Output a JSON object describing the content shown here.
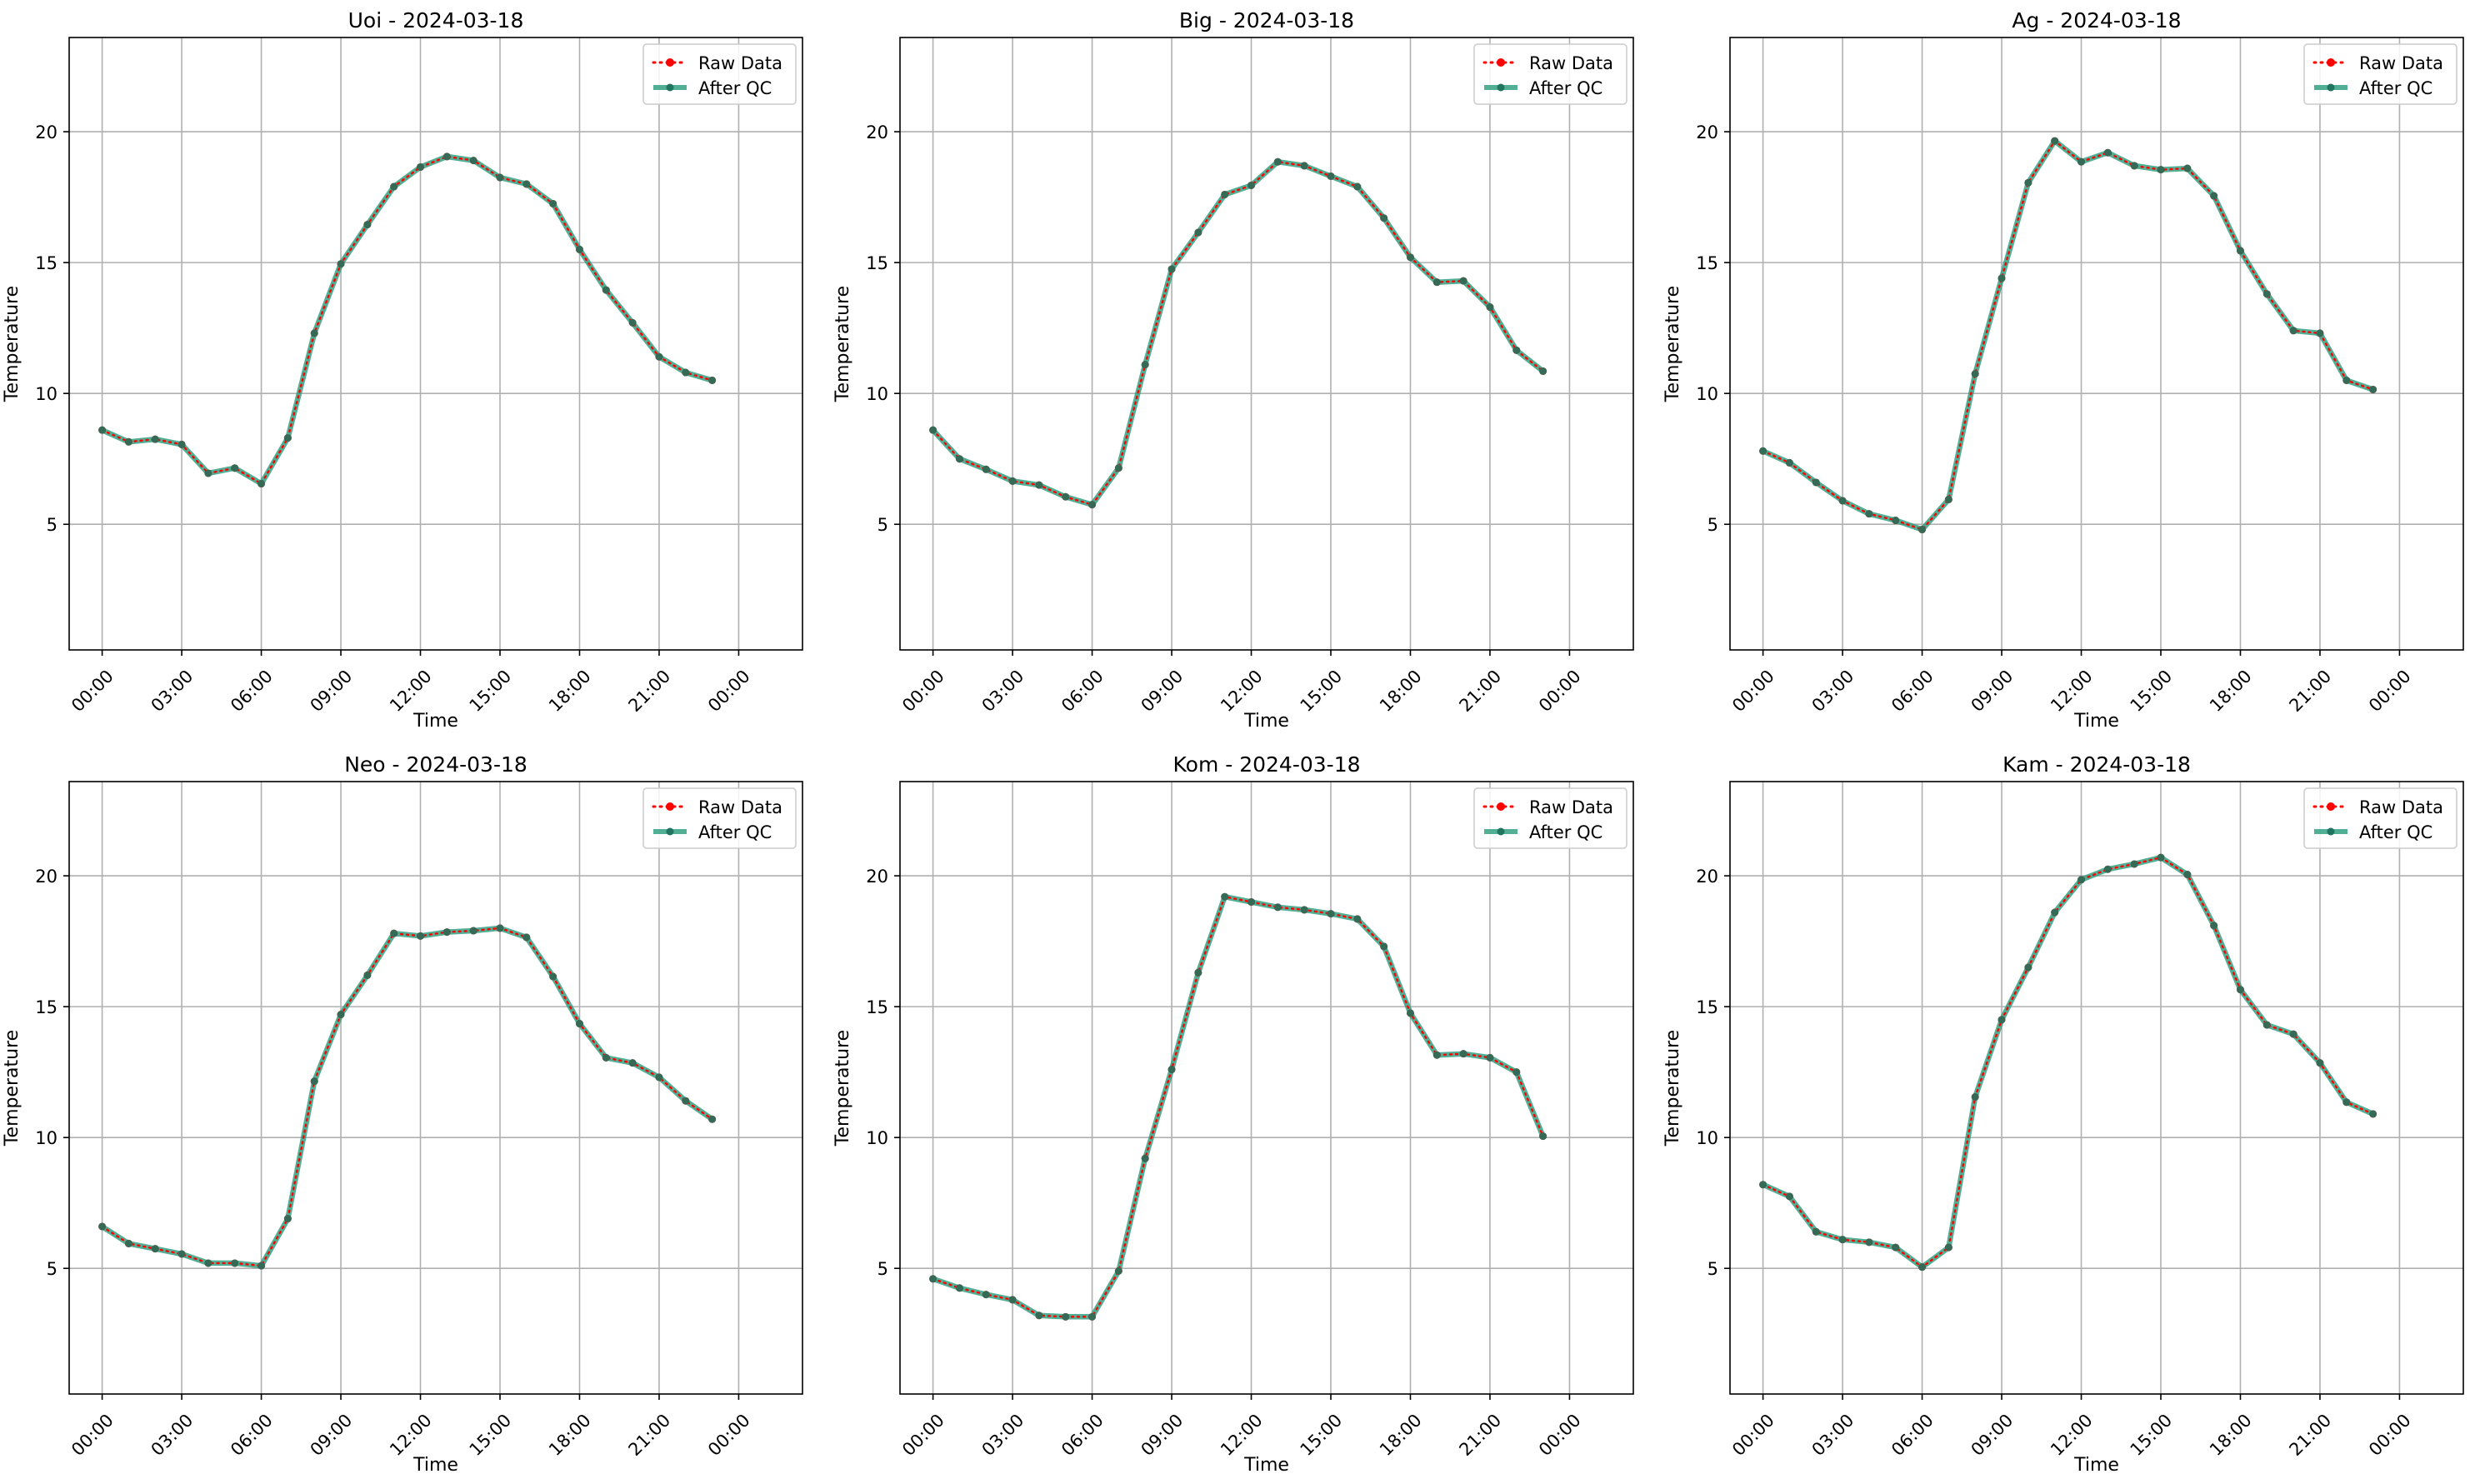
{
  "chart_data": [
    {
      "type": "line",
      "title": "Uoi - 2024-03-18",
      "xlabel": "Time",
      "ylabel": "Temperature",
      "x": [
        "00:00",
        "01:00",
        "02:00",
        "03:00",
        "04:00",
        "05:00",
        "06:00",
        "07:00",
        "08:00",
        "09:00",
        "10:00",
        "11:00",
        "12:00",
        "13:00",
        "14:00",
        "15:00",
        "16:00",
        "17:00",
        "18:00",
        "19:00",
        "20:00",
        "21:00",
        "22:00",
        "23:00"
      ],
      "xticks": [
        "00:00",
        "03:00",
        "06:00",
        "09:00",
        "12:00",
        "15:00",
        "18:00",
        "21:00",
        "00:00"
      ],
      "yticks": [
        "5",
        "10",
        "15",
        "20"
      ],
      "ylim": [
        0.2,
        23.6
      ],
      "grid": true,
      "legend": {
        "position": "top-right",
        "entries": [
          "Raw Data",
          "After QC"
        ]
      },
      "series": [
        {
          "name": "Raw Data",
          "color": "#ff0000",
          "values": [
            8.6,
            8.15,
            8.25,
            8.05,
            6.95,
            7.15,
            6.55,
            8.3,
            12.3,
            14.95,
            16.45,
            17.9,
            18.65,
            19.05,
            18.9,
            18.25,
            18.0,
            17.25,
            15.5,
            13.95,
            12.7,
            11.4,
            10.8,
            10.5
          ]
        },
        {
          "name": "After QC",
          "color": "#2a9d7c",
          "values": [
            8.6,
            8.15,
            8.25,
            8.05,
            6.95,
            7.15,
            6.55,
            8.3,
            12.3,
            14.95,
            16.45,
            17.9,
            18.65,
            19.05,
            18.9,
            18.25,
            18.0,
            17.25,
            15.5,
            13.95,
            12.7,
            11.4,
            10.8,
            10.5
          ]
        }
      ]
    },
    {
      "type": "line",
      "title": "Big - 2024-03-18",
      "xlabel": "Time",
      "ylabel": "Temperature",
      "x": [
        "00:00",
        "01:00",
        "02:00",
        "03:00",
        "04:00",
        "05:00",
        "06:00",
        "07:00",
        "08:00",
        "09:00",
        "10:00",
        "11:00",
        "12:00",
        "13:00",
        "14:00",
        "15:00",
        "16:00",
        "17:00",
        "18:00",
        "19:00",
        "20:00",
        "21:00",
        "22:00",
        "23:00"
      ],
      "xticks": [
        "00:00",
        "03:00",
        "06:00",
        "09:00",
        "12:00",
        "15:00",
        "18:00",
        "21:00",
        "00:00"
      ],
      "yticks": [
        "5",
        "10",
        "15",
        "20"
      ],
      "ylim": [
        0.2,
        23.6
      ],
      "grid": true,
      "legend": {
        "position": "top-right",
        "entries": [
          "Raw Data",
          "After QC"
        ]
      },
      "series": [
        {
          "name": "Raw Data",
          "color": "#ff0000",
          "values": [
            8.6,
            7.5,
            7.1,
            6.65,
            6.5,
            6.05,
            5.75,
            7.15,
            11.1,
            14.75,
            16.15,
            17.6,
            17.95,
            18.85,
            18.7,
            18.3,
            17.9,
            16.7,
            15.2,
            14.25,
            14.3,
            13.3,
            11.65,
            10.85
          ]
        },
        {
          "name": "After QC",
          "color": "#2a9d7c",
          "values": [
            8.6,
            7.5,
            7.1,
            6.65,
            6.5,
            6.05,
            5.75,
            7.15,
            11.1,
            14.75,
            16.15,
            17.6,
            17.95,
            18.85,
            18.7,
            18.3,
            17.9,
            16.7,
            15.2,
            14.25,
            14.3,
            13.3,
            11.65,
            10.85
          ]
        }
      ]
    },
    {
      "type": "line",
      "title": "Ag - 2024-03-18",
      "xlabel": "Time",
      "ylabel": "Temperature",
      "x": [
        "00:00",
        "01:00",
        "02:00",
        "03:00",
        "04:00",
        "05:00",
        "06:00",
        "07:00",
        "08:00",
        "09:00",
        "10:00",
        "11:00",
        "12:00",
        "13:00",
        "14:00",
        "15:00",
        "16:00",
        "17:00",
        "18:00",
        "19:00",
        "20:00",
        "21:00",
        "22:00",
        "23:00"
      ],
      "xticks": [
        "00:00",
        "03:00",
        "06:00",
        "09:00",
        "12:00",
        "15:00",
        "18:00",
        "21:00",
        "00:00"
      ],
      "yticks": [
        "5",
        "10",
        "15",
        "20"
      ],
      "ylim": [
        0.2,
        23.6
      ],
      "grid": true,
      "legend": {
        "position": "top-right",
        "entries": [
          "Raw Data",
          "After QC"
        ]
      },
      "series": [
        {
          "name": "Raw Data",
          "color": "#ff0000",
          "values": [
            7.8,
            7.35,
            6.6,
            5.9,
            5.4,
            5.15,
            4.8,
            5.95,
            10.75,
            14.4,
            18.05,
            19.65,
            18.85,
            19.2,
            18.7,
            18.55,
            18.6,
            17.55,
            15.45,
            13.8,
            12.4,
            12.3,
            10.5,
            10.15
          ]
        },
        {
          "name": "After QC",
          "color": "#2a9d7c",
          "values": [
            7.8,
            7.35,
            6.6,
            5.9,
            5.4,
            5.15,
            4.8,
            5.95,
            10.75,
            14.4,
            18.05,
            19.65,
            18.85,
            19.2,
            18.7,
            18.55,
            18.6,
            17.55,
            15.45,
            13.8,
            12.4,
            12.3,
            10.5,
            10.15
          ]
        }
      ]
    },
    {
      "type": "line",
      "title": "Neo - 2024-03-18",
      "xlabel": "Time",
      "ylabel": "Temperature",
      "x": [
        "00:00",
        "01:00",
        "02:00",
        "03:00",
        "04:00",
        "05:00",
        "06:00",
        "07:00",
        "08:00",
        "09:00",
        "10:00",
        "11:00",
        "12:00",
        "13:00",
        "14:00",
        "15:00",
        "16:00",
        "17:00",
        "18:00",
        "19:00",
        "20:00",
        "21:00",
        "22:00",
        "23:00"
      ],
      "xticks": [
        "00:00",
        "03:00",
        "06:00",
        "09:00",
        "12:00",
        "15:00",
        "18:00",
        "21:00",
        "00:00"
      ],
      "yticks": [
        "5",
        "10",
        "15",
        "20"
      ],
      "ylim": [
        0.2,
        23.6
      ],
      "grid": true,
      "legend": {
        "position": "top-right",
        "entries": [
          "Raw Data",
          "After QC"
        ]
      },
      "series": [
        {
          "name": "Raw Data",
          "color": "#ff0000",
          "values": [
            6.6,
            5.95,
            5.75,
            5.55,
            5.2,
            5.2,
            5.1,
            6.9,
            12.15,
            14.7,
            16.2,
            17.8,
            17.7,
            17.85,
            17.9,
            18.0,
            17.65,
            16.15,
            14.35,
            13.05,
            12.85,
            12.3,
            11.4,
            10.7
          ]
        },
        {
          "name": "After QC",
          "color": "#2a9d7c",
          "values": [
            6.6,
            5.95,
            5.75,
            5.55,
            5.2,
            5.2,
            5.1,
            6.9,
            12.15,
            14.7,
            16.2,
            17.8,
            17.7,
            17.85,
            17.9,
            18.0,
            17.65,
            16.15,
            14.35,
            13.05,
            12.85,
            12.3,
            11.4,
            10.7
          ]
        }
      ]
    },
    {
      "type": "line",
      "title": "Kom - 2024-03-18",
      "xlabel": "Time",
      "ylabel": "Temperature",
      "x": [
        "00:00",
        "01:00",
        "02:00",
        "03:00",
        "04:00",
        "05:00",
        "06:00",
        "07:00",
        "08:00",
        "09:00",
        "10:00",
        "11:00",
        "12:00",
        "13:00",
        "14:00",
        "15:00",
        "16:00",
        "17:00",
        "18:00",
        "19:00",
        "20:00",
        "21:00",
        "22:00",
        "23:00"
      ],
      "xticks": [
        "00:00",
        "03:00",
        "06:00",
        "09:00",
        "12:00",
        "15:00",
        "18:00",
        "21:00",
        "00:00"
      ],
      "yticks": [
        "5",
        "10",
        "15",
        "20"
      ],
      "ylim": [
        0.2,
        23.6
      ],
      "grid": true,
      "legend": {
        "position": "top-right",
        "entries": [
          "Raw Data",
          "After QC"
        ]
      },
      "series": [
        {
          "name": "Raw Data",
          "color": "#ff0000",
          "values": [
            4.6,
            4.25,
            4.0,
            3.8,
            3.2,
            3.15,
            3.15,
            4.9,
            9.2,
            12.6,
            16.3,
            19.2,
            19.0,
            18.8,
            18.7,
            18.55,
            18.35,
            17.3,
            14.75,
            13.15,
            13.2,
            13.05,
            12.5,
            10.05
          ]
        },
        {
          "name": "After QC",
          "color": "#2a9d7c",
          "values": [
            4.6,
            4.25,
            4.0,
            3.8,
            3.2,
            3.15,
            3.15,
            4.9,
            9.2,
            12.6,
            16.3,
            19.2,
            19.0,
            18.8,
            18.7,
            18.55,
            18.35,
            17.3,
            14.75,
            13.15,
            13.2,
            13.05,
            12.5,
            10.05
          ]
        }
      ]
    },
    {
      "type": "line",
      "title": "Kam - 2024-03-18",
      "xlabel": "Time",
      "ylabel": "Temperature",
      "x": [
        "00:00",
        "01:00",
        "02:00",
        "03:00",
        "04:00",
        "05:00",
        "06:00",
        "07:00",
        "08:00",
        "09:00",
        "10:00",
        "11:00",
        "12:00",
        "13:00",
        "14:00",
        "15:00",
        "16:00",
        "17:00",
        "18:00",
        "19:00",
        "20:00",
        "21:00",
        "22:00",
        "23:00"
      ],
      "xticks": [
        "00:00",
        "03:00",
        "06:00",
        "09:00",
        "12:00",
        "15:00",
        "18:00",
        "21:00",
        "00:00"
      ],
      "yticks": [
        "5",
        "10",
        "15",
        "20"
      ],
      "ylim": [
        0.2,
        23.6
      ],
      "grid": true,
      "legend": {
        "position": "top-right",
        "entries": [
          "Raw Data",
          "After QC"
        ]
      },
      "series": [
        {
          "name": "Raw Data",
          "color": "#ff0000",
          "values": [
            8.2,
            7.75,
            6.4,
            6.1,
            6.0,
            5.8,
            5.05,
            5.8,
            11.55,
            14.5,
            16.5,
            18.6,
            19.85,
            20.25,
            20.45,
            20.7,
            20.05,
            18.1,
            15.65,
            14.3,
            13.95,
            12.85,
            11.35,
            10.9
          ]
        },
        {
          "name": "After QC",
          "color": "#2a9d7c",
          "values": [
            8.2,
            7.75,
            6.4,
            6.1,
            6.0,
            5.8,
            5.05,
            5.8,
            11.55,
            14.5,
            16.5,
            18.6,
            19.85,
            20.25,
            20.45,
            20.7,
            20.05,
            18.1,
            15.65,
            14.3,
            13.95,
            12.85,
            11.35,
            10.9
          ]
        }
      ]
    }
  ]
}
